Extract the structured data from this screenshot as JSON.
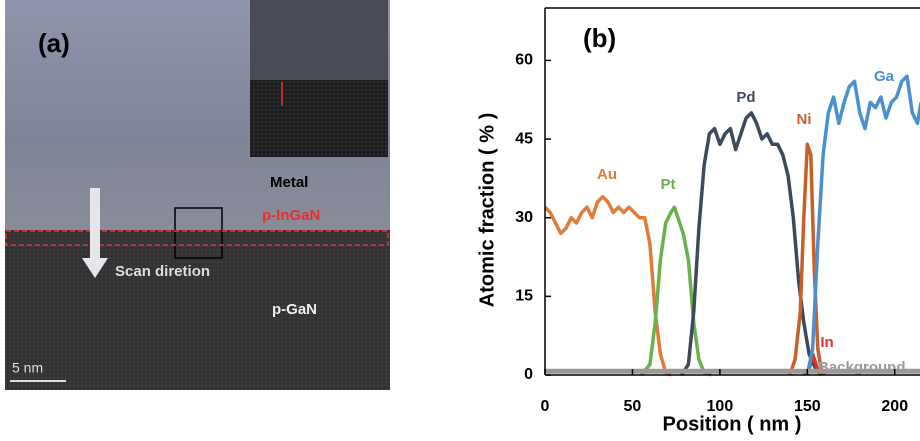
{
  "image_panel": {
    "label": "(a)",
    "layers": [
      "Metal",
      "p-InGaN",
      "p-GaN"
    ],
    "scan_label": "Scan diretion",
    "scale_bar": "5 nm"
  },
  "chart_data": {
    "type": "line",
    "label": "(b)",
    "xlabel": "Position ( nm )",
    "ylabel": "Atomic fraction ( % )",
    "xlim": [
      0,
      215
    ],
    "ylim": [
      0,
      70
    ],
    "xticks": [
      0,
      50,
      100,
      150,
      200
    ],
    "yticks": [
      0,
      15,
      30,
      45,
      60
    ],
    "grid": false,
    "series": [
      {
        "name": "Au",
        "color": "#e07b39",
        "x": [
          0,
          3,
          6,
          9,
          12,
          15,
          18,
          21,
          24,
          27,
          30,
          33,
          36,
          39,
          42,
          45,
          48,
          51,
          54,
          57,
          60,
          63,
          66,
          69,
          72
        ],
        "values": [
          32,
          31,
          29,
          27,
          28,
          30,
          29,
          31,
          32,
          30,
          33,
          34,
          33,
          31,
          32,
          31,
          32,
          31,
          30,
          30,
          25,
          12,
          4,
          0.5,
          0
        ]
      },
      {
        "name": "Pt",
        "color": "#6ab04c",
        "x": [
          55,
          60,
          63,
          66,
          69,
          72,
          74,
          76,
          79,
          82,
          85,
          88,
          91,
          95
        ],
        "values": [
          0,
          2,
          10,
          22,
          29,
          31,
          32,
          30,
          27,
          22,
          10,
          3,
          0.5,
          0
        ]
      },
      {
        "name": "Pd",
        "color": "#3d4a5c",
        "x": [
          78,
          82,
          85,
          88,
          91,
          94,
          97,
          100,
          103,
          106,
          109,
          112,
          115,
          118,
          121,
          124,
          127,
          130,
          133,
          136,
          139,
          142,
          145,
          148,
          151,
          155,
          158
        ],
        "values": [
          0,
          2,
          12,
          28,
          40,
          46,
          47,
          44,
          46,
          47,
          43,
          46,
          49,
          50,
          48,
          45,
          46,
          44,
          44,
          42,
          38,
          30,
          18,
          10,
          4,
          1,
          0
        ]
      },
      {
        "name": "Ni",
        "color": "#c8602a",
        "x": [
          140,
          143,
          146,
          148,
          150,
          152,
          154,
          156,
          158,
          160
        ],
        "values": [
          0,
          3,
          12,
          30,
          44,
          42,
          20,
          5,
          1,
          0
        ]
      },
      {
        "name": "In",
        "color": "#e03030",
        "x": [
          148,
          151,
          153,
          155,
          157
        ],
        "values": [
          0,
          1,
          4,
          2,
          0
        ]
      },
      {
        "name": "Ga",
        "color": "#4a90d0",
        "x": [
          150,
          153,
          156,
          159,
          162,
          165,
          168,
          171,
          174,
          177,
          180,
          183,
          186,
          189,
          192,
          195,
          198,
          201,
          204,
          207,
          210,
          213,
          215
        ],
        "values": [
          0,
          5,
          25,
          42,
          50,
          53,
          48,
          52,
          55,
          56,
          50,
          47,
          52,
          51,
          53,
          49,
          52,
          53,
          56,
          57,
          50,
          48,
          52
        ]
      },
      {
        "name": "Background",
        "color": "#999999",
        "x": [
          0,
          215
        ],
        "values": [
          0.7,
          0.7
        ]
      }
    ]
  }
}
